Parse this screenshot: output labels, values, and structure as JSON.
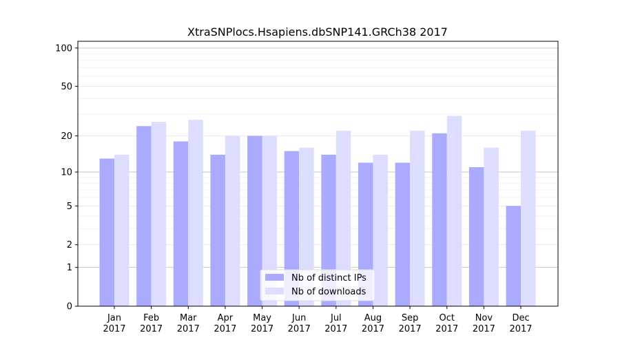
{
  "chart_data": {
    "type": "bar",
    "title": "XtraSNPlocs.Hsapiens.dbSNP141.GRCh38 2017",
    "xlabel": "",
    "ylabel": "",
    "yscale": "log(1+y)",
    "ylim": [
      0,
      113
    ],
    "yticks": [
      0,
      1,
      2,
      5,
      10,
      20,
      50,
      100
    ],
    "ytick_labels": [
      "0",
      "1",
      "2",
      "5",
      "10",
      "20",
      "50",
      "100"
    ],
    "categories": [
      "Jan\n2017",
      "Feb\n2017",
      "Mar\n2017",
      "Apr\n2017",
      "May\n2017",
      "Jun\n2017",
      "Jul\n2017",
      "Aug\n2017",
      "Sep\n2017",
      "Oct\n2017",
      "Nov\n2017",
      "Dec\n2017"
    ],
    "category_months": [
      "Jan",
      "Feb",
      "Mar",
      "Apr",
      "May",
      "Jun",
      "Jul",
      "Aug",
      "Sep",
      "Oct",
      "Nov",
      "Dec"
    ],
    "category_year": "2017",
    "series": [
      {
        "name": "Nb of distinct IPs",
        "color": "#aaaaff",
        "values": [
          13,
          24,
          18,
          14,
          20,
          15,
          14,
          12,
          12,
          21,
          11,
          5
        ]
      },
      {
        "name": "Nb of downloads",
        "color": "#ddddff",
        "values": [
          14,
          26,
          27,
          20,
          20,
          16,
          22,
          14,
          22,
          29,
          16,
          22
        ]
      }
    ],
    "grid": true,
    "legend_position": "bottom-center"
  }
}
